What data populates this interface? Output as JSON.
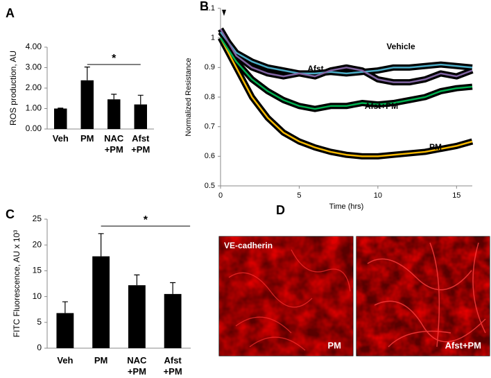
{
  "chart_data": [
    {
      "type": "bar",
      "panel": "A",
      "ylabel": "ROS production, AU",
      "categories": [
        "Veh",
        "PM",
        "NAC\n+PM",
        "Afst\n+PM"
      ],
      "values": [
        1.0,
        2.38,
        1.45,
        1.2
      ],
      "errors": [
        0.02,
        0.65,
        0.25,
        0.45
      ],
      "color": "#000000",
      "ylim": [
        0,
        4
      ],
      "yticks": [
        {
          "value": 0,
          "label": "0.00"
        },
        {
          "value": 1,
          "label": "1.00"
        },
        {
          "value": 2,
          "label": "2.00"
        },
        {
          "value": 3,
          "label": "3.00"
        },
        {
          "value": 4,
          "label": "4.00"
        }
      ],
      "significance": "*"
    },
    {
      "type": "line",
      "panel": "B",
      "xlabel": "Time (hrs)",
      "ylabel": "Normalized Resistance",
      "x": [
        0,
        1,
        2,
        3,
        4,
        5,
        6,
        7,
        8,
        9,
        10,
        11,
        12,
        13,
        14,
        15,
        16
      ],
      "series": [
        {
          "name": "Afst",
          "color": "#8064a2",
          "values": [
            1.03,
            0.94,
            0.9,
            0.88,
            0.87,
            0.88,
            0.87,
            0.89,
            0.9,
            0.89,
            0.86,
            0.85,
            0.85,
            0.86,
            0.88,
            0.87,
            0.89
          ]
        },
        {
          "name": "Vehicle",
          "color": "#4bacc6",
          "values": [
            1.02,
            0.95,
            0.92,
            0.9,
            0.89,
            0.88,
            0.88,
            0.885,
            0.88,
            0.885,
            0.89,
            0.9,
            0.9,
            0.905,
            0.91,
            0.905,
            0.9
          ]
        },
        {
          "name": "Afst+PM",
          "color": "#00b050",
          "values": [
            1.0,
            0.92,
            0.86,
            0.82,
            0.79,
            0.77,
            0.76,
            0.77,
            0.77,
            0.78,
            0.775,
            0.78,
            0.79,
            0.8,
            0.82,
            0.83,
            0.835
          ]
        },
        {
          "name": "PM",
          "color": "#f5b800",
          "values": [
            1.0,
            0.9,
            0.8,
            0.73,
            0.68,
            0.65,
            0.63,
            0.615,
            0.605,
            0.6,
            0.6,
            0.605,
            0.61,
            0.615,
            0.625,
            0.635,
            0.65
          ]
        }
      ],
      "xlim": [
        0,
        16
      ],
      "xticks": [
        0,
        5,
        10,
        15
      ],
      "ylim": [
        0.5,
        1.1
      ],
      "yticks": [
        0.5,
        0.6,
        0.7,
        0.8,
        0.9,
        1,
        1.1
      ]
    },
    {
      "type": "bar",
      "panel": "C",
      "ylabel": "FITC Fluorescence, AU x 10³",
      "categories": [
        "Veh",
        "PM",
        "NAC\n+PM",
        "Afst\n+PM"
      ],
      "values": [
        6.8,
        17.8,
        12.2,
        10.5
      ],
      "errors": [
        2.2,
        4.4,
        2.0,
        2.2
      ],
      "color": "#000000",
      "ylim": [
        0,
        25
      ],
      "yticks": [
        0,
        5,
        10,
        15,
        20,
        25
      ],
      "significance": "*"
    }
  ],
  "image_panel": {
    "panel": "D",
    "stain": "VE-cadherin",
    "conditions": [
      "PM",
      "Afst+PM"
    ]
  }
}
